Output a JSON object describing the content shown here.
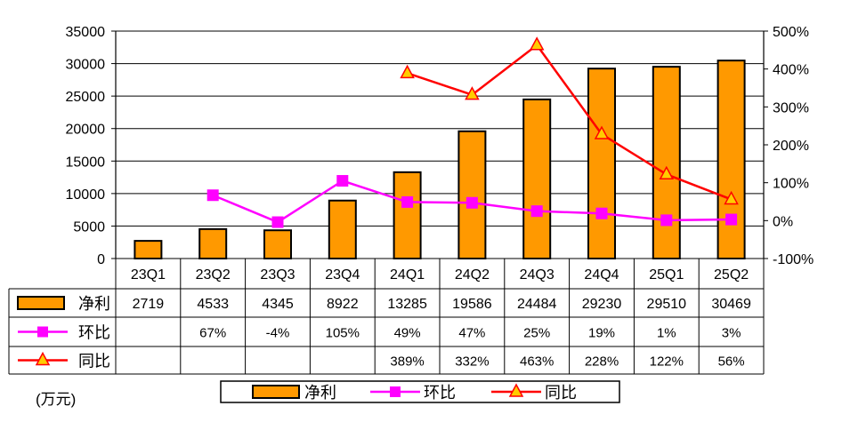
{
  "chart_data": {
    "type": "bar+line",
    "categories": [
      "23Q1",
      "23Q2",
      "23Q3",
      "23Q4",
      "24Q1",
      "24Q2",
      "24Q3",
      "24Q4",
      "25Q1",
      "25Q2"
    ],
    "y_left": {
      "min": 0,
      "max": 35000,
      "ticks": [
        "0",
        "5000",
        "10000",
        "15000",
        "20000",
        "25000",
        "30000",
        "35000"
      ]
    },
    "y_right": {
      "min": -100,
      "max": 500,
      "ticks": [
        "-100%",
        "0%",
        "100%",
        "200%",
        "300%",
        "400%",
        "500%"
      ]
    },
    "series": [
      {
        "name": "净利",
        "kind": "bar",
        "color": "#ff9900",
        "values": [
          2719,
          4533,
          4345,
          8922,
          13285,
          19586,
          24484,
          29230,
          29510,
          30469
        ],
        "labels": [
          "2719",
          "4533",
          "4345",
          "8922",
          "13285",
          "19586",
          "24484",
          "29230",
          "29510",
          "30469"
        ]
      },
      {
        "name": "环比",
        "kind": "line",
        "axis": "right",
        "marker": "square",
        "color": "#ff00ff",
        "values": [
          null,
          67,
          -4,
          105,
          49,
          47,
          25,
          19,
          1,
          3
        ],
        "labels": [
          "",
          "67%",
          "-4%",
          "105%",
          "49%",
          "47%",
          "25%",
          "19%",
          "1%",
          "3%"
        ]
      },
      {
        "name": "同比",
        "kind": "line",
        "axis": "right",
        "marker": "triangle",
        "color": "#ff0000",
        "marker_fill": "#ffcc00",
        "values": [
          null,
          null,
          null,
          null,
          389,
          332,
          463,
          228,
          122,
          56
        ],
        "labels": [
          "",
          "",
          "",
          "",
          "389%",
          "332%",
          "463%",
          "228%",
          "122%",
          "56%"
        ]
      }
    ],
    "unit_label": "(万元)",
    "legend": [
      "净利",
      "环比",
      "同比"
    ]
  }
}
